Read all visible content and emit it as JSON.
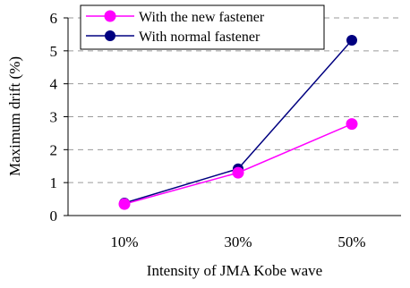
{
  "chart_data": {
    "type": "line",
    "categories": [
      "10%",
      "30%",
      "50%"
    ],
    "series": [
      {
        "name": "With the new fastener",
        "values": [
          0.35,
          1.3,
          2.78
        ],
        "color": "#ff00ff",
        "marker_edge": "#ff00ff"
      },
      {
        "name": "With normal fastener",
        "values": [
          0.38,
          1.42,
          5.32
        ],
        "color": "#000080",
        "marker_edge": "#000080"
      }
    ],
    "xlabel": "Intensity of JMA Kobe wave",
    "ylabel": "Maximum drift (%)",
    "ylim": [
      0,
      6
    ],
    "yticks": [
      "0",
      "1",
      "2",
      "3",
      "4",
      "5",
      "6"
    ],
    "grid": "horizontal-dashed",
    "legend_position": "top-left"
  }
}
